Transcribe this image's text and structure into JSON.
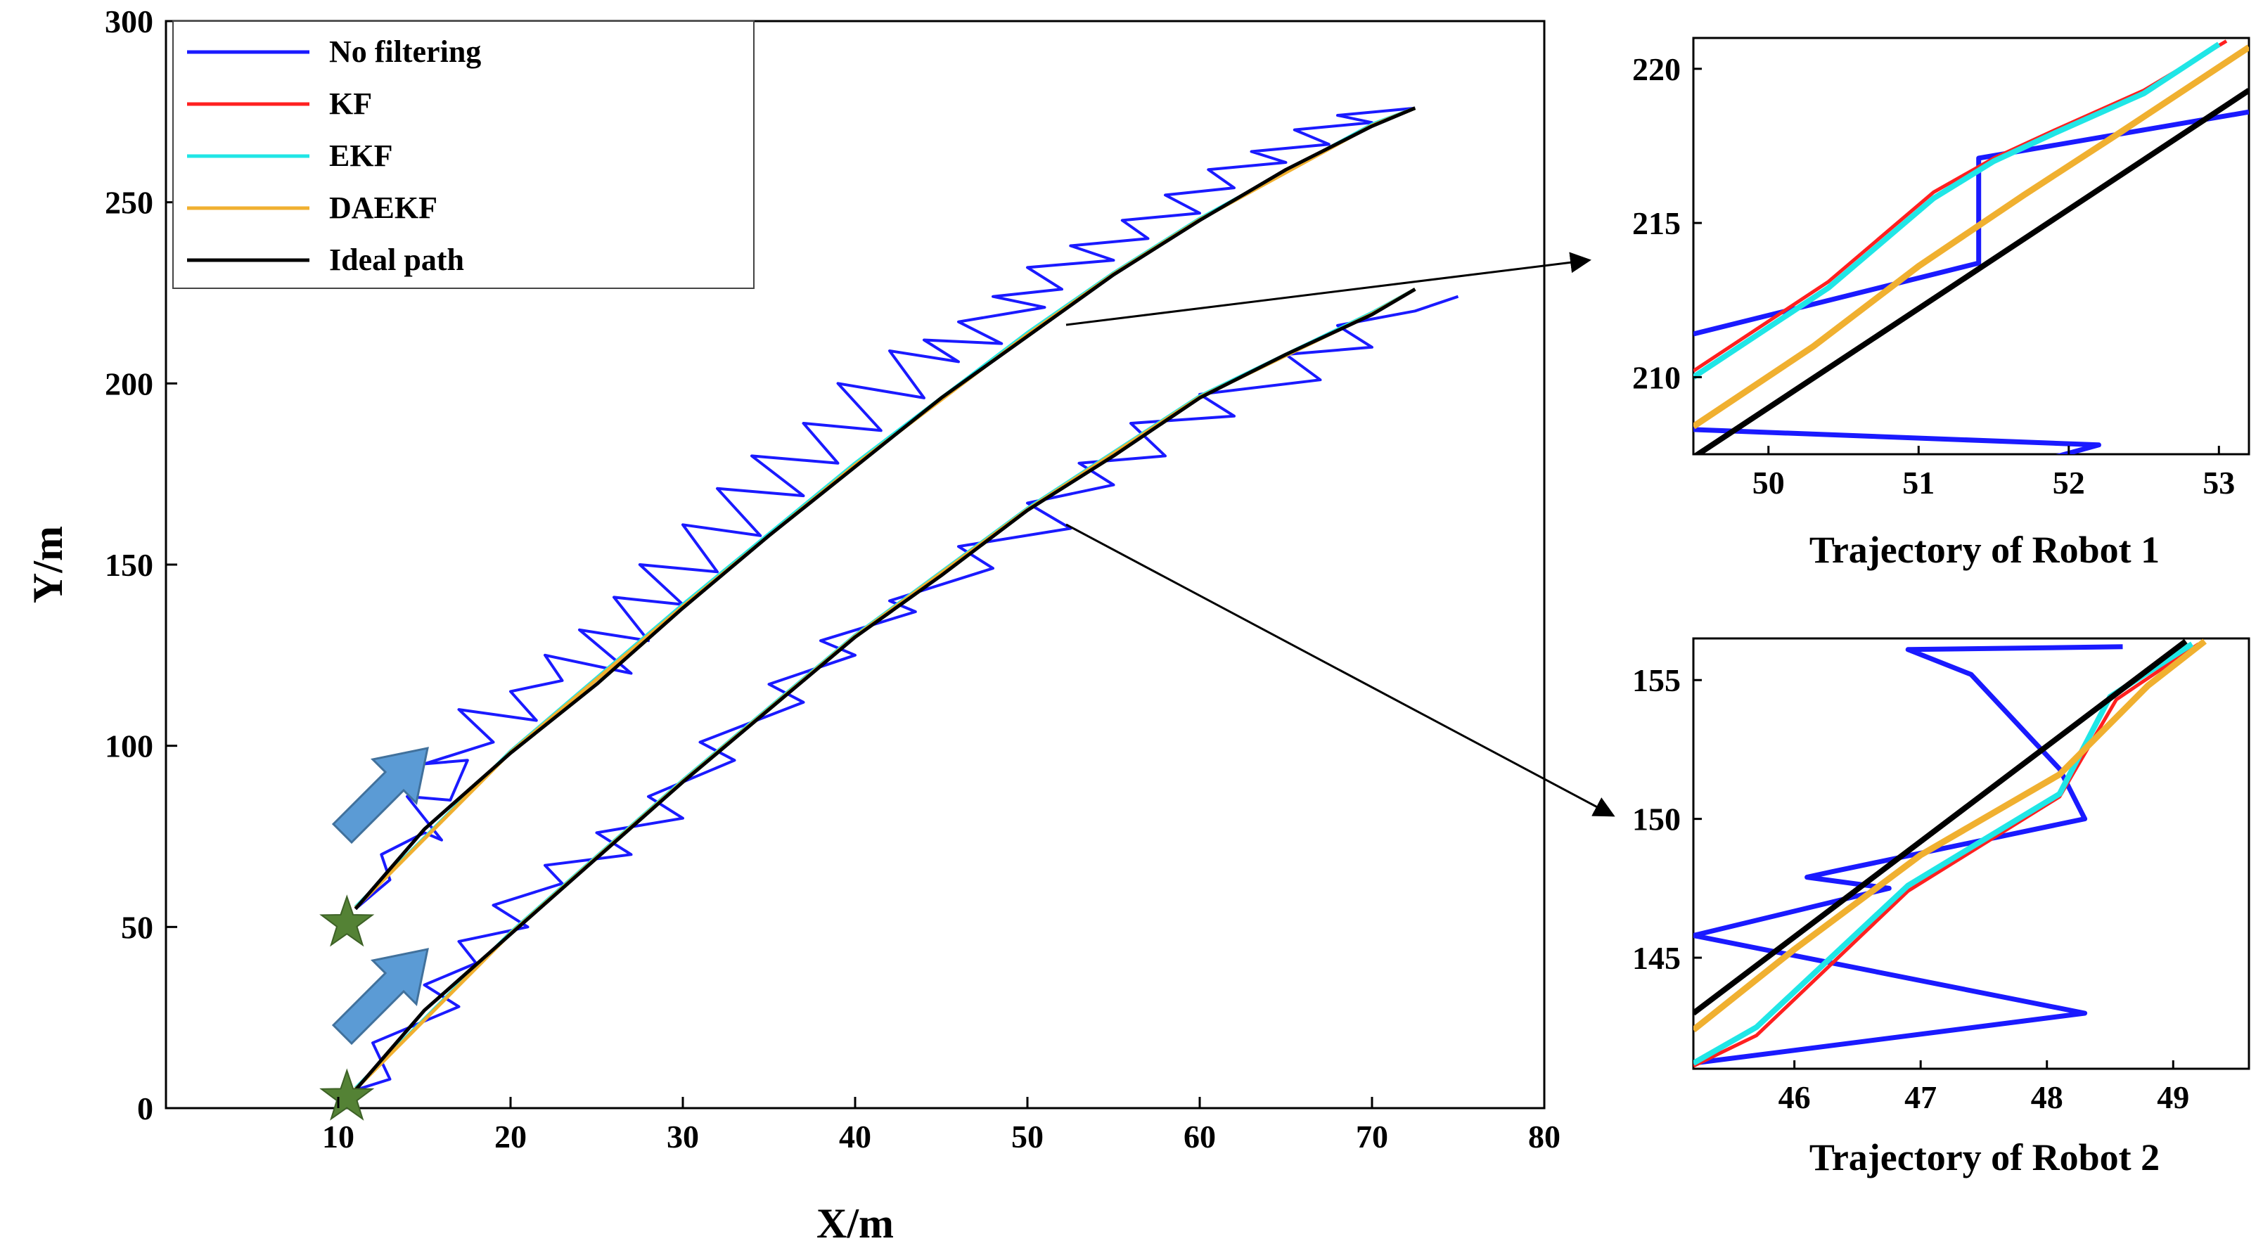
{
  "figure": {
    "main": {
      "type": "line",
      "xlabel": "X/m",
      "ylabel": "Y/m",
      "xlim": [
        0,
        80
      ],
      "ylim": [
        0,
        300
      ],
      "xticks": [
        10,
        20,
        30,
        40,
        50,
        60,
        70,
        80
      ],
      "yticks": [
        0,
        50,
        100,
        150,
        200,
        250,
        300
      ],
      "legend": {
        "position": "top-left",
        "entries": [
          {
            "name": "No filtering",
            "color": "#1a1aff"
          },
          {
            "name": "KF",
            "color": "#ff2020"
          },
          {
            "name": "EKF",
            "color": "#20e6e6"
          },
          {
            "name": "DAEKF",
            "color": "#f0b030"
          },
          {
            "name": "Ideal path",
            "color": "#000000"
          }
        ]
      }
    },
    "inset1": {
      "caption": "Trajectory of Robot 1",
      "xlim": [
        49.5,
        53.2
      ],
      "ylim": [
        207.5,
        221
      ],
      "xticks": [
        50,
        51,
        52,
        53
      ],
      "yticks": [
        210,
        215,
        220
      ]
    },
    "inset2": {
      "caption": "Trajectory of Robot 2",
      "xlim": [
        45.2,
        49.6
      ],
      "ylim": [
        141,
        156.5
      ],
      "xticks": [
        46,
        47,
        48,
        49
      ],
      "yticks": [
        145,
        150,
        155
      ]
    }
  },
  "chart_data": [
    {
      "type": "line",
      "title": "",
      "xlabel": "X/m",
      "ylabel": "Y/m",
      "xlim": [
        0,
        80
      ],
      "ylim": [
        0,
        300
      ],
      "markers": [
        {
          "name": "Robot 1 start",
          "shape": "star",
          "color": "#548235",
          "x": 10.5,
          "y": 51
        },
        {
          "name": "Robot 2 start",
          "shape": "star",
          "color": "#548235",
          "x": 10.5,
          "y": 3
        }
      ],
      "series": [
        {
          "name": "Ideal path",
          "robot": 1,
          "color": "#000000",
          "x": [
            11,
            15,
            20,
            25,
            30,
            35,
            40,
            45,
            50,
            55,
            60,
            65,
            70,
            72.5
          ],
          "y": [
            55,
            77,
            98,
            117,
            138,
            158,
            177,
            196,
            213,
            230,
            245,
            259,
            271,
            276
          ]
        },
        {
          "name": "No filtering",
          "robot": 1,
          "color": "#1a1aff",
          "x": [
            11,
            13,
            12.5,
            15,
            16,
            14,
            16.5,
            17.5,
            15,
            19,
            17,
            21.5,
            20,
            23,
            22,
            27,
            24,
            28,
            26,
            30,
            27.5,
            32,
            30,
            34.5,
            32,
            37,
            34,
            39,
            37,
            41.5,
            39,
            44,
            42,
            46,
            44,
            48.5,
            46,
            51,
            48,
            52,
            50,
            55,
            52.5,
            57,
            55.5,
            60,
            58,
            62,
            60.5,
            65,
            63,
            67.5,
            65.5,
            70,
            68,
            72.5
          ],
          "y": [
            55,
            63,
            70,
            76,
            74,
            86,
            85,
            96,
            95,
            101,
            110,
            107,
            115,
            118,
            125,
            120,
            132,
            129,
            141,
            139,
            150,
            148,
            161,
            158,
            171,
            169,
            180,
            178,
            189,
            187,
            200,
            196,
            209,
            206,
            212,
            211,
            217,
            221,
            224,
            226,
            232,
            234,
            238,
            240,
            245,
            247,
            252,
            254,
            259,
            261,
            264,
            266,
            270,
            272,
            274,
            276
          ]
        },
        {
          "name": "KF",
          "robot": 1,
          "color": "#ff2020",
          "x": [
            11,
            20,
            30,
            40,
            50,
            55,
            60,
            70,
            72.5
          ],
          "y": [
            55.5,
            98.5,
            139,
            178,
            214,
            230.5,
            245.5,
            271.5,
            276
          ]
        },
        {
          "name": "EKF",
          "robot": 1,
          "color": "#20e6e6",
          "x": [
            11,
            20,
            30,
            40,
            50,
            55,
            60,
            70,
            72.5
          ],
          "y": [
            55.5,
            98.5,
            139,
            178,
            214,
            230.5,
            245.5,
            271.5,
            276
          ]
        },
        {
          "name": "DAEKF",
          "robot": 1,
          "color": "#f0b030",
          "x": [
            11,
            20,
            30,
            40,
            50,
            55,
            60,
            70,
            72.5
          ],
          "y": [
            55.2,
            98.2,
            138.5,
            177.5,
            213.5,
            230.2,
            245.2,
            271.2,
            276
          ]
        },
        {
          "name": "Ideal path",
          "robot": 2,
          "color": "#000000",
          "x": [
            11,
            15,
            20,
            25,
            30,
            35,
            40,
            45,
            50,
            55,
            60,
            65,
            70,
            72.5
          ],
          "y": [
            5,
            27,
            48,
            69,
            90,
            110,
            130,
            147,
            165,
            180,
            196,
            208,
            219,
            226
          ]
        },
        {
          "name": "No filtering",
          "robot": 2,
          "color": "#1a1aff",
          "x": [
            11,
            13,
            12,
            17,
            15,
            18,
            17,
            21,
            19,
            23,
            22,
            27,
            25,
            30,
            28,
            33,
            31,
            37,
            35,
            40,
            38,
            43.5,
            42,
            48,
            46,
            52.5,
            50,
            55,
            53,
            58,
            56,
            62,
            60,
            67,
            65,
            70,
            68,
            72.5,
            75
          ],
          "y": [
            5,
            8,
            18,
            28,
            34,
            40,
            46,
            50,
            56,
            62,
            67,
            70,
            76,
            80,
            86,
            96,
            101,
            112,
            117,
            125,
            129,
            137,
            140,
            149,
            155,
            160,
            167,
            172,
            178,
            180,
            189,
            191,
            197,
            201,
            208,
            210,
            216,
            220,
            224
          ]
        },
        {
          "name": "KF",
          "robot": 2,
          "color": "#ff2020",
          "x": [
            11,
            20,
            30,
            40,
            50,
            60,
            70,
            72.5
          ],
          "y": [
            5.5,
            48.5,
            90.5,
            130.5,
            165.5,
            196.5,
            219.5,
            226
          ]
        },
        {
          "name": "EKF",
          "robot": 2,
          "color": "#20e6e6",
          "x": [
            11,
            20,
            30,
            40,
            50,
            60,
            70,
            72.5
          ],
          "y": [
            5.5,
            48.5,
            90.5,
            130.5,
            165.5,
            196.5,
            219.5,
            226
          ]
        },
        {
          "name": "DAEKF",
          "robot": 2,
          "color": "#f0b030",
          "x": [
            11,
            20,
            30,
            40,
            50,
            60,
            70,
            72.5
          ],
          "y": [
            5.2,
            48.2,
            90.2,
            130.2,
            165.2,
            196.2,
            219.2,
            226
          ]
        }
      ]
    },
    {
      "type": "line",
      "title": "Trajectory of Robot 1",
      "xlim": [
        49.5,
        53.2
      ],
      "ylim": [
        207.5,
        221
      ],
      "series": [
        {
          "name": "No filtering",
          "color": "#1a1aff",
          "x": [
            49.5,
            51.4,
            51.4,
            53.2
          ],
          "y": [
            211.4,
            213.7,
            217.1,
            218.6
          ]
        },
        {
          "name": "No filtering (lower)",
          "color": "#1a1aff",
          "x": [
            49.5,
            52.2,
            51.9
          ],
          "y": [
            208.3,
            207.8,
            207.4
          ]
        },
        {
          "name": "KF",
          "color": "#ff2020",
          "x": [
            49.5,
            50.4,
            51.1,
            51.5,
            51.9,
            52.5,
            53.05
          ],
          "y": [
            210.2,
            213.1,
            216.0,
            217.1,
            218.0,
            219.3,
            220.9
          ]
        },
        {
          "name": "EKF",
          "color": "#20e6e6",
          "x": [
            49.5,
            50.4,
            51.1,
            51.5,
            51.9,
            52.5,
            53.0
          ],
          "y": [
            210.0,
            212.9,
            215.8,
            217.0,
            217.9,
            219.2,
            220.8
          ]
        },
        {
          "name": "DAEKF",
          "color": "#f0b030",
          "x": [
            49.5,
            50.3,
            51.0,
            51.7,
            52.3,
            53.2
          ],
          "y": [
            208.4,
            211.0,
            213.6,
            215.9,
            217.8,
            220.7
          ]
        },
        {
          "name": "Ideal path",
          "color": "#000000",
          "x": [
            49.5,
            53.2
          ],
          "y": [
            207.4,
            219.3
          ]
        }
      ]
    },
    {
      "type": "line",
      "title": "Trajectory of Robot 2",
      "xlim": [
        45.2,
        49.6
      ],
      "ylim": [
        141,
        156.5
      ],
      "series": [
        {
          "name": "No filtering",
          "color": "#1a1aff",
          "x": [
            48.6,
            46.9,
            47.4,
            48.1,
            48.3,
            46.3,
            46.1,
            46.75,
            45.2,
            48.3,
            45.2
          ],
          "y": [
            156.2,
            156.1,
            155.2,
            151.8,
            150.0,
            148.1,
            147.9,
            147.5,
            145.8,
            143.0,
            141.2
          ]
        },
        {
          "name": "KF",
          "color": "#ff2020",
          "x": [
            45.2,
            45.7,
            46.9,
            48.1,
            48.55,
            49.2
          ],
          "y": [
            141.1,
            142.2,
            147.4,
            150.8,
            154.3,
            156.3
          ]
        },
        {
          "name": "EKF",
          "color": "#20e6e6",
          "x": [
            45.2,
            45.7,
            46.9,
            48.1,
            48.5,
            49.15
          ],
          "y": [
            141.2,
            142.5,
            147.6,
            150.9,
            154.4,
            156.3
          ]
        },
        {
          "name": "DAEKF",
          "color": "#f0b030",
          "x": [
            45.2,
            46.0,
            47.0,
            48.1,
            48.8,
            49.25
          ],
          "y": [
            142.4,
            145.3,
            148.7,
            151.6,
            154.8,
            156.4
          ]
        },
        {
          "name": "Ideal path",
          "color": "#000000",
          "x": [
            45.2,
            49.1
          ],
          "y": [
            143.0,
            156.4
          ]
        }
      ]
    }
  ]
}
